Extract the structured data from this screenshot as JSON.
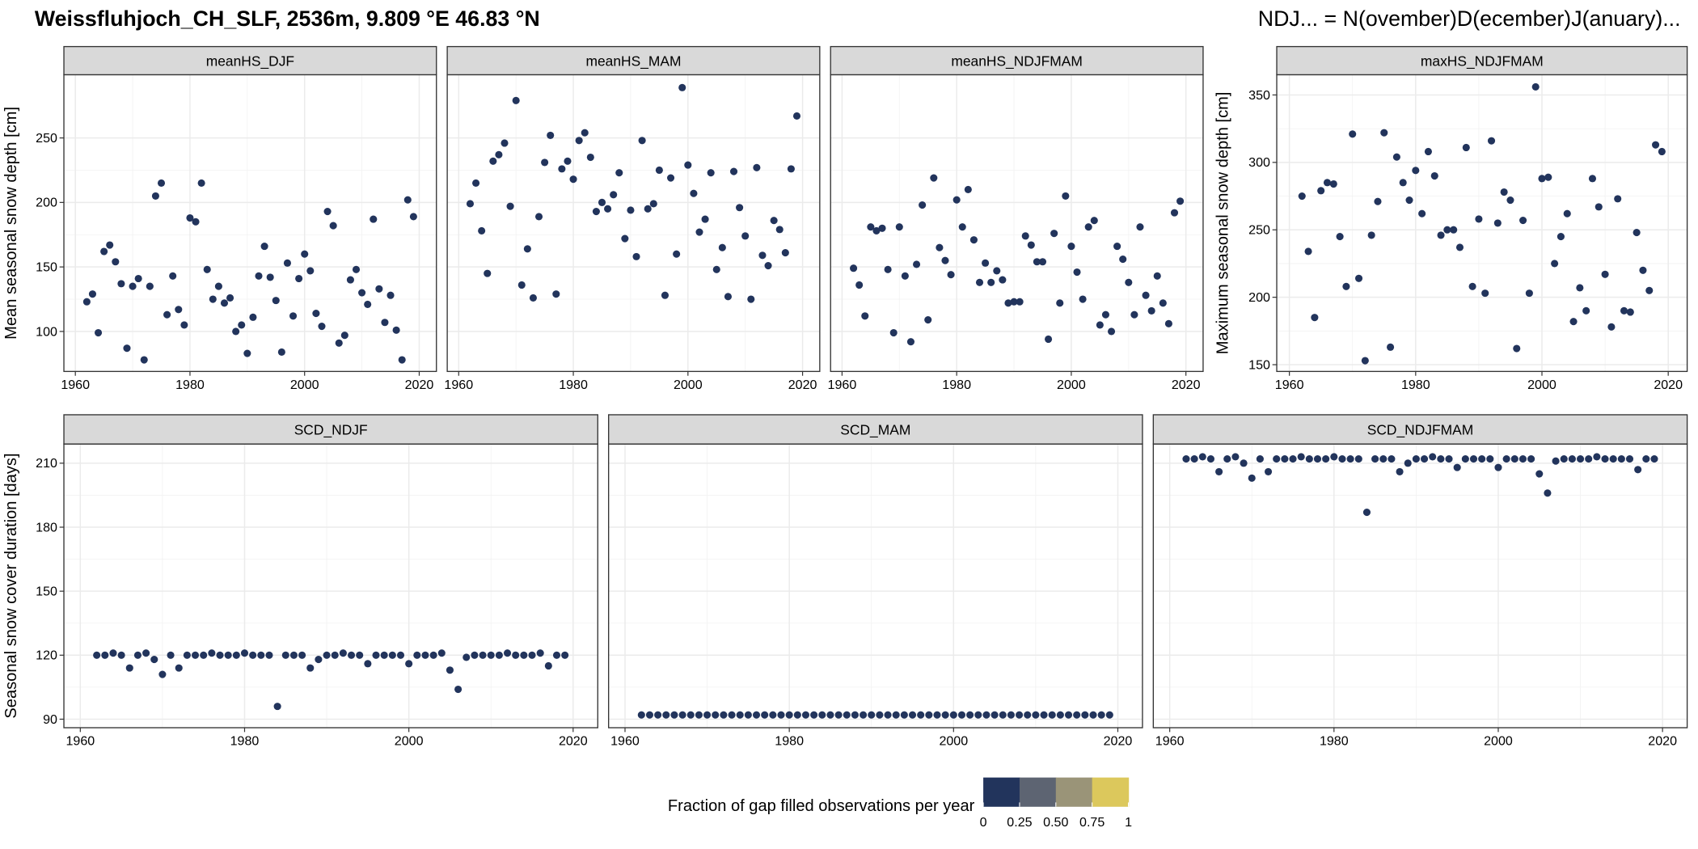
{
  "title": "Weissfluhjoch_CH_SLF, 2536m, 9.809 °E 46.83 °N",
  "note": "NDJ... = N(ovember)D(ecember)J(anuary)...",
  "legend": {
    "title": "Fraction of gap filled observations per year",
    "ticks": [
      0,
      0.25,
      {
        "value": 0.5,
        "label": "0.50"
      },
      0.75,
      1
    ],
    "colors": [
      "#22345c",
      "#5d6472",
      "#9a9478",
      "#dcc85c"
    ]
  },
  "chart_data": [
    {
      "type": "scatter",
      "title": "meanHS_DJF",
      "ylabel": "Mean seasonal snow depth [cm]",
      "color": "#22345c",
      "x": [
        1962,
        1963,
        1964,
        1965,
        1966,
        1967,
        1968,
        1969,
        1970,
        1971,
        1972,
        1973,
        1974,
        1975,
        1976,
        1977,
        1978,
        1979,
        1980,
        1981,
        1982,
        1983,
        1984,
        1985,
        1986,
        1987,
        1988,
        1989,
        1990,
        1991,
        1992,
        1993,
        1994,
        1995,
        1996,
        1997,
        1998,
        1999,
        2000,
        2001,
        2002,
        2003,
        2004,
        2005,
        2006,
        2007,
        2008,
        2009,
        2010,
        2011,
        2012,
        2013,
        2014,
        2015,
        2016,
        2017,
        2018,
        2019
      ],
      "values": [
        123,
        129,
        99,
        162,
        167,
        154,
        137,
        87,
        135,
        141,
        78,
        135,
        205,
        215,
        113,
        143,
        117,
        105,
        188,
        185,
        215,
        148,
        125,
        135,
        122,
        126,
        100,
        105,
        83,
        111,
        143,
        166,
        142,
        124,
        84,
        153,
        112,
        141,
        160,
        147,
        114,
        104,
        193,
        182,
        91,
        97,
        140,
        148,
        130,
        121,
        187,
        133,
        107,
        128,
        101,
        78,
        202,
        189
      ],
      "xlim": [
        1958,
        2023
      ],
      "ylim": [
        69,
        299
      ],
      "xticks": [
        1960,
        1980,
        2000,
        2020
      ],
      "yticks": [
        100,
        150,
        200,
        250
      ],
      "ytick_labels": true,
      "grid": true
    },
    {
      "type": "scatter",
      "title": "meanHS_MAM",
      "color": "#22345c",
      "x": [
        1962,
        1963,
        1964,
        1965,
        1966,
        1967,
        1968,
        1969,
        1970,
        1971,
        1972,
        1973,
        1974,
        1975,
        1976,
        1977,
        1978,
        1979,
        1980,
        1981,
        1982,
        1983,
        1984,
        1985,
        1986,
        1987,
        1988,
        1989,
        1990,
        1991,
        1992,
        1993,
        1994,
        1995,
        1996,
        1997,
        1998,
        1999,
        2000,
        2001,
        2002,
        2003,
        2004,
        2005,
        2006,
        2007,
        2008,
        2009,
        2010,
        2011,
        2012,
        2013,
        2014,
        2015,
        2016,
        2017,
        2018,
        2019
      ],
      "values": [
        199,
        215,
        178,
        145,
        232,
        237,
        246,
        197,
        279,
        136,
        164,
        126,
        189,
        231,
        252,
        129,
        226,
        232,
        218,
        248,
        254,
        235,
        193,
        200,
        195,
        206,
        223,
        172,
        194,
        158,
        248,
        195,
        199,
        225,
        128,
        219,
        160,
        289,
        229,
        207,
        177,
        187,
        223,
        148,
        165,
        127,
        224,
        196,
        174,
        125,
        227,
        159,
        151,
        186,
        179,
        161,
        226,
        267
      ],
      "xlim": [
        1958,
        2023
      ],
      "ylim": [
        69,
        299
      ],
      "xticks": [
        1960,
        1980,
        2000,
        2020
      ],
      "yticks": [
        100,
        150,
        200,
        250
      ],
      "ytick_labels": false,
      "grid": true
    },
    {
      "type": "scatter",
      "title": "meanHS_NDJFMAM",
      "color": "#22345c",
      "x": [
        1962,
        1963,
        1964,
        1965,
        1966,
        1967,
        1968,
        1969,
        1970,
        1971,
        1972,
        1973,
        1974,
        1975,
        1976,
        1977,
        1978,
        1979,
        1980,
        1981,
        1982,
        1983,
        1984,
        1985,
        1986,
        1987,
        1988,
        1989,
        1990,
        1991,
        1992,
        1993,
        1994,
        1995,
        1996,
        1997,
        1998,
        1999,
        2000,
        2001,
        2002,
        2003,
        2004,
        2005,
        2006,
        2007,
        2008,
        2009,
        2010,
        2011,
        2012,
        2013,
        2014,
        2015,
        2016,
        2017,
        2018,
        2019
      ],
      "values": [
        149,
        136,
        112,
        181,
        178,
        180,
        148,
        99,
        181,
        143,
        92,
        152,
        198,
        109,
        219,
        165,
        155,
        144,
        202,
        181,
        210,
        171,
        138,
        153,
        138,
        147,
        140,
        122,
        123,
        123,
        174,
        167,
        154,
        154,
        94,
        176,
        122,
        205,
        166,
        146,
        125,
        181,
        186,
        105,
        113,
        100,
        166,
        156,
        138,
        113,
        181,
        128,
        116,
        143,
        122,
        106,
        192,
        201
      ],
      "xlim": [
        1958,
        2023
      ],
      "ylim": [
        69,
        299
      ],
      "xticks": [
        1960,
        1980,
        2000,
        2020
      ],
      "yticks": [
        100,
        150,
        200,
        250
      ],
      "ytick_labels": false,
      "grid": true
    },
    {
      "type": "scatter",
      "title": "maxHS_NDJFMAM",
      "ylabel": "Maximum seasonal snow depth [cm]",
      "color": "#22345c",
      "x": [
        1962,
        1963,
        1964,
        1965,
        1966,
        1967,
        1968,
        1969,
        1970,
        1971,
        1972,
        1973,
        1974,
        1975,
        1976,
        1977,
        1978,
        1979,
        1980,
        1981,
        1982,
        1983,
        1984,
        1985,
        1986,
        1987,
        1988,
        1989,
        1990,
        1991,
        1992,
        1993,
        1994,
        1995,
        1996,
        1997,
        1998,
        1999,
        2000,
        2001,
        2002,
        2003,
        2004,
        2005,
        2006,
        2007,
        2008,
        2009,
        2010,
        2011,
        2012,
        2013,
        2014,
        2015,
        2016,
        2017,
        2018,
        2019
      ],
      "values": [
        275,
        234,
        185,
        279,
        285,
        284,
        245,
        208,
        321,
        214,
        153,
        246,
        271,
        322,
        163,
        304,
        285,
        272,
        294,
        262,
        308,
        290,
        246,
        250,
        250,
        237,
        311,
        208,
        258,
        203,
        316,
        255,
        278,
        272,
        162,
        257,
        203,
        356,
        288,
        289,
        225,
        245,
        262,
        182,
        207,
        190,
        288,
        267,
        217,
        178,
        273,
        190,
        189,
        248,
        220,
        205,
        313,
        308
      ],
      "xlim": [
        1958,
        2023
      ],
      "ylim": [
        145,
        365
      ],
      "xticks": [
        1960,
        1980,
        2000,
        2020
      ],
      "yticks": [
        150,
        200,
        250,
        300,
        350
      ],
      "ytick_labels": true,
      "grid": true
    },
    {
      "type": "scatter",
      "title": "SCD_NDJF",
      "ylabel": "Seasonal snow cover duration [days]",
      "color": "#22345c",
      "x": [
        1962,
        1963,
        1964,
        1965,
        1966,
        1967,
        1968,
        1969,
        1970,
        1971,
        1972,
        1973,
        1974,
        1975,
        1976,
        1977,
        1978,
        1979,
        1980,
        1981,
        1982,
        1983,
        1984,
        1985,
        1986,
        1987,
        1988,
        1989,
        1990,
        1991,
        1992,
        1993,
        1994,
        1995,
        1996,
        1997,
        1998,
        1999,
        2000,
        2001,
        2002,
        2003,
        2004,
        2005,
        2006,
        2007,
        2008,
        2009,
        2010,
        2011,
        2012,
        2013,
        2014,
        2015,
        2016,
        2017,
        2018,
        2019
      ],
      "values": [
        120,
        120,
        121,
        120,
        114,
        120,
        121,
        118,
        111,
        120,
        114,
        120,
        120,
        120,
        121,
        120,
        120,
        120,
        121,
        120,
        120,
        120,
        96,
        120,
        120,
        120,
        114,
        118,
        120,
        120,
        121,
        120,
        120,
        116,
        120,
        120,
        120,
        120,
        116,
        120,
        120,
        120,
        121,
        113,
        104,
        119,
        120,
        120,
        120,
        120,
        121,
        120,
        120,
        120,
        121,
        115,
        120,
        120
      ],
      "xlim": [
        1958,
        2023
      ],
      "ylim": [
        86,
        219
      ],
      "xticks": [
        1960,
        1980,
        2000,
        2020
      ],
      "yticks": [
        90,
        120,
        150,
        180,
        210
      ],
      "ytick_labels": true,
      "grid": true
    },
    {
      "type": "scatter",
      "title": "SCD_MAM",
      "color": "#22345c",
      "x": [
        1962,
        1963,
        1964,
        1965,
        1966,
        1967,
        1968,
        1969,
        1970,
        1971,
        1972,
        1973,
        1974,
        1975,
        1976,
        1977,
        1978,
        1979,
        1980,
        1981,
        1982,
        1983,
        1984,
        1985,
        1986,
        1987,
        1988,
        1989,
        1990,
        1991,
        1992,
        1993,
        1994,
        1995,
        1996,
        1997,
        1998,
        1999,
        2000,
        2001,
        2002,
        2003,
        2004,
        2005,
        2006,
        2007,
        2008,
        2009,
        2010,
        2011,
        2012,
        2013,
        2014,
        2015,
        2016,
        2017,
        2018,
        2019
      ],
      "values": [
        92,
        92,
        92,
        92,
        92,
        92,
        92,
        92,
        92,
        92,
        92,
        92,
        92,
        92,
        92,
        92,
        92,
        92,
        92,
        92,
        92,
        92,
        92,
        92,
        92,
        92,
        92,
        92,
        92,
        92,
        92,
        92,
        92,
        92,
        92,
        92,
        92,
        92,
        92,
        92,
        92,
        92,
        92,
        92,
        92,
        92,
        92,
        92,
        92,
        92,
        92,
        92,
        92,
        92,
        92,
        92,
        92,
        92
      ],
      "xlim": [
        1958,
        2023
      ],
      "ylim": [
        86,
        219
      ],
      "xticks": [
        1960,
        1980,
        2000,
        2020
      ],
      "yticks": [
        90,
        120,
        150,
        180,
        210
      ],
      "ytick_labels": false,
      "grid": true
    },
    {
      "type": "scatter",
      "title": "SCD_NDJFMAM",
      "color": "#22345c",
      "x": [
        1962,
        1963,
        1964,
        1965,
        1966,
        1967,
        1968,
        1969,
        1970,
        1971,
        1972,
        1973,
        1974,
        1975,
        1976,
        1977,
        1978,
        1979,
        1980,
        1981,
        1982,
        1983,
        1984,
        1985,
        1986,
        1987,
        1988,
        1989,
        1990,
        1991,
        1992,
        1993,
        1994,
        1995,
        1996,
        1997,
        1998,
        1999,
        2000,
        2001,
        2002,
        2003,
        2004,
        2005,
        2006,
        2007,
        2008,
        2009,
        2010,
        2011,
        2012,
        2013,
        2014,
        2015,
        2016,
        2017,
        2018,
        2019
      ],
      "values": [
        212,
        212,
        213,
        212,
        206,
        212,
        213,
        210,
        203,
        212,
        206,
        212,
        212,
        212,
        213,
        212,
        212,
        212,
        213,
        212,
        212,
        212,
        187,
        212,
        212,
        212,
        206,
        210,
        212,
        212,
        213,
        212,
        212,
        208,
        212,
        212,
        212,
        212,
        208,
        212,
        212,
        212,
        212,
        205,
        196,
        211,
        212,
        212,
        212,
        212,
        213,
        212,
        212,
        212,
        212,
        207,
        212,
        212
      ],
      "xlim": [
        1958,
        2023
      ],
      "ylim": [
        86,
        219
      ],
      "xticks": [
        1960,
        1980,
        2000,
        2020
      ],
      "yticks": [
        90,
        120,
        150,
        180,
        210
      ],
      "ytick_labels": false,
      "grid": true
    }
  ]
}
